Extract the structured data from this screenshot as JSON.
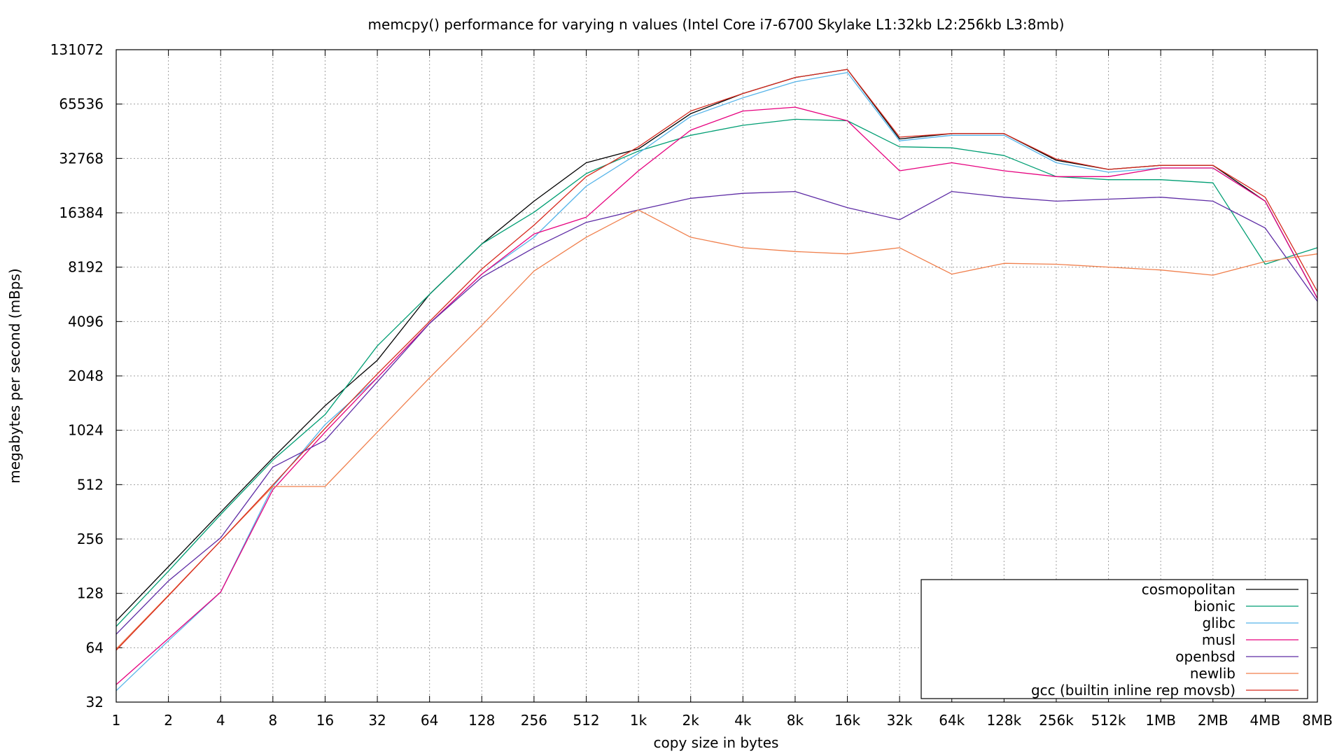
{
  "chart_data": {
    "type": "line",
    "title": "memcpy() performance for varying n values (Intel Core i7-6700 Skylake L1:32kb L2:256kb L3:8mb)",
    "xlabel": "copy size in bytes",
    "ylabel": "megabytes per second (mBps)",
    "y_scale": "log2",
    "ylim": [
      32,
      131072
    ],
    "ytick_labels": [
      "32",
      "64",
      "128",
      "256",
      "512",
      "1024",
      "2048",
      "4096",
      "8192",
      "16384",
      "32768",
      "65536",
      "131072"
    ],
    "categories": [
      "1",
      "2",
      "4",
      "8",
      "16",
      "32",
      "64",
      "128",
      "256",
      "512",
      "1k",
      "2k",
      "4k",
      "8k",
      "16k",
      "32k",
      "64k",
      "128k",
      "256k",
      "512k",
      "1MB",
      "2MB",
      "4MB",
      "8MB"
    ],
    "grid": true,
    "legend_position": "bottom-right",
    "series": [
      {
        "name": "cosmopolitan",
        "color": "#000000",
        "values": [
          90,
          180,
          360,
          720,
          1400,
          2500,
          5800,
          11000,
          19000,
          31000,
          37000,
          58000,
          75000,
          92000,
          102000,
          42000,
          45000,
          45000,
          32000,
          28500,
          30000,
          30000,
          19000,
          5500
        ]
      },
      {
        "name": "bionic",
        "color": "#009e73",
        "values": [
          84,
          170,
          350,
          700,
          1250,
          3000,
          5800,
          11000,
          16500,
          27000,
          36000,
          44000,
          50000,
          54000,
          53000,
          38000,
          37500,
          34000,
          26000,
          25000,
          25000,
          24000,
          8500,
          10500
        ]
      },
      {
        "name": "glibc",
        "color": "#56b4e9",
        "values": [
          37,
          70,
          130,
          500,
          1100,
          2000,
          4000,
          7500,
          12000,
          23000,
          35000,
          56000,
          71000,
          87000,
          98000,
          41000,
          44000,
          44000,
          31000,
          27500,
          29000,
          29000,
          19000,
          5500
        ]
      },
      {
        "name": "musl",
        "color": "#e6007e",
        "values": [
          40,
          72,
          130,
          480,
          1000,
          2000,
          4000,
          7500,
          12500,
          15500,
          28000,
          47000,
          60000,
          63000,
          53000,
          28000,
          31000,
          28000,
          26000,
          26000,
          29000,
          29000,
          19000,
          5500
        ]
      },
      {
        "name": "openbsd",
        "color": "#5e2ca5",
        "values": [
          76,
          150,
          260,
          640,
          900,
          1900,
          4000,
          7200,
          10500,
          14500,
          17000,
          19700,
          21000,
          21500,
          17500,
          15000,
          21500,
          20000,
          19000,
          19500,
          20000,
          19000,
          13500,
          5300
        ]
      },
      {
        "name": "newlib",
        "color": "#f07f4c",
        "values": [
          63,
          125,
          250,
          500,
          500,
          1000,
          2000,
          3900,
          7800,
          12000,
          17000,
          12000,
          10500,
          10000,
          9700,
          10500,
          7500,
          8600,
          8500,
          8200,
          7900,
          7400,
          8800,
          9700
        ]
      },
      {
        "name": "gcc (builtin inline rep movsb)",
        "color": "#d62a1e",
        "values": [
          62,
          124,
          250,
          510,
          1050,
          2100,
          4100,
          8000,
          14000,
          26000,
          38000,
          60000,
          75000,
          92000,
          102000,
          43000,
          45000,
          45000,
          32500,
          28500,
          30000,
          30000,
          20000,
          6000
        ]
      }
    ]
  }
}
